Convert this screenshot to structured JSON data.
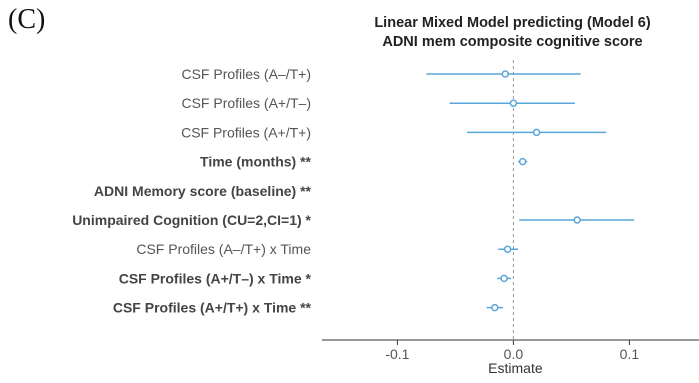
{
  "panel_label": "(C)",
  "chart_data": {
    "type": "forest",
    "title_lines": [
      "Linear Mixed Model predicting (Model 6)",
      "ADNI mem composite cognitive score"
    ],
    "xlabel": "Estimate",
    "ylabel": "",
    "xlim": [
      -0.165,
      0.16
    ],
    "xticks": [
      -0.1,
      0.0,
      0.1
    ],
    "xtick_labels": [
      "-0.1",
      "0.0",
      "0.1"
    ],
    "reference_line": 0,
    "grid": false,
    "colors": {
      "point": "#5aa6d8",
      "ci": "#5aa6d8",
      "reference": "#999999",
      "label": "#555555",
      "label_bold": "#444444"
    },
    "rows": [
      {
        "label": "CSF Profiles (A–/T+)",
        "bold": false,
        "estimate": -0.007,
        "lower": -0.075,
        "upper": 0.058
      },
      {
        "label": "CSF Profiles (A+/T–)",
        "bold": false,
        "estimate": 0.0,
        "lower": -0.055,
        "upper": 0.053
      },
      {
        "label": "CSF Profiles (A+/T+)",
        "bold": false,
        "estimate": 0.02,
        "lower": -0.04,
        "upper": 0.08
      },
      {
        "label": "Time (months) **",
        "bold": true,
        "estimate": 0.008,
        "lower": 0.004,
        "upper": 0.012
      },
      {
        "label": "ADNI Memory score (baseline) **",
        "bold": true,
        "estimate": null,
        "lower": null,
        "upper": null
      },
      {
        "label": "Unimpaired Cognition (CU=2,CI=1) *",
        "bold": true,
        "estimate": 0.055,
        "lower": 0.005,
        "upper": 0.104
      },
      {
        "label": "CSF Profiles (A–/T+) x Time",
        "bold": false,
        "estimate": -0.005,
        "lower": -0.013,
        "upper": 0.004
      },
      {
        "label": "CSF Profiles (A+/T–) x Time *",
        "bold": true,
        "estimate": -0.008,
        "lower": -0.014,
        "upper": -0.002
      },
      {
        "label": "CSF Profiles (A+/T+) x Time **",
        "bold": true,
        "estimate": -0.016,
        "lower": -0.023,
        "upper": -0.009
      }
    ]
  }
}
